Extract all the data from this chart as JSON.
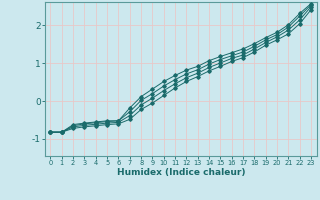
{
  "title": "",
  "xlabel": "Humidex (Indice chaleur)",
  "ylabel": "",
  "bg_color": "#cce8ee",
  "grid_color": "#e8c8c8",
  "line_color": "#1a6b6b",
  "xlim": [
    -0.5,
    23.5
  ],
  "ylim": [
    -1.45,
    2.62
  ],
  "xticks": [
    0,
    1,
    2,
    3,
    4,
    5,
    6,
    7,
    8,
    9,
    10,
    11,
    12,
    13,
    14,
    15,
    16,
    17,
    18,
    19,
    20,
    21,
    22,
    23
  ],
  "yticks": [
    -1,
    0,
    1,
    2
  ],
  "x": [
    0,
    1,
    2,
    3,
    4,
    5,
    6,
    7,
    8,
    9,
    10,
    11,
    12,
    13,
    14,
    15,
    16,
    17,
    18,
    19,
    20,
    21,
    22,
    23
  ],
  "line1": [
    -0.82,
    -0.82,
    -0.72,
    -0.68,
    -0.65,
    -0.62,
    -0.6,
    -0.48,
    -0.22,
    -0.05,
    0.15,
    0.35,
    0.52,
    0.65,
    0.8,
    0.92,
    1.05,
    1.15,
    1.3,
    1.48,
    1.62,
    1.78,
    2.05,
    2.42
  ],
  "line2": [
    -0.82,
    -0.82,
    -0.68,
    -0.64,
    -0.61,
    -0.58,
    -0.56,
    -0.38,
    -0.1,
    0.08,
    0.28,
    0.46,
    0.62,
    0.74,
    0.89,
    1.01,
    1.13,
    1.22,
    1.38,
    1.55,
    1.7,
    1.88,
    2.15,
    2.5
  ],
  "line3": [
    -0.82,
    -0.82,
    -0.65,
    -0.6,
    -0.57,
    -0.54,
    -0.52,
    -0.28,
    0.02,
    0.2,
    0.4,
    0.57,
    0.72,
    0.83,
    0.98,
    1.1,
    1.2,
    1.3,
    1.45,
    1.62,
    1.76,
    1.96,
    2.25,
    2.55
  ],
  "line4": [
    -0.82,
    -0.82,
    -0.62,
    -0.58,
    -0.55,
    -0.52,
    -0.52,
    -0.18,
    0.12,
    0.32,
    0.52,
    0.68,
    0.82,
    0.92,
    1.07,
    1.18,
    1.28,
    1.38,
    1.52,
    1.68,
    1.82,
    2.02,
    2.32,
    2.58
  ]
}
